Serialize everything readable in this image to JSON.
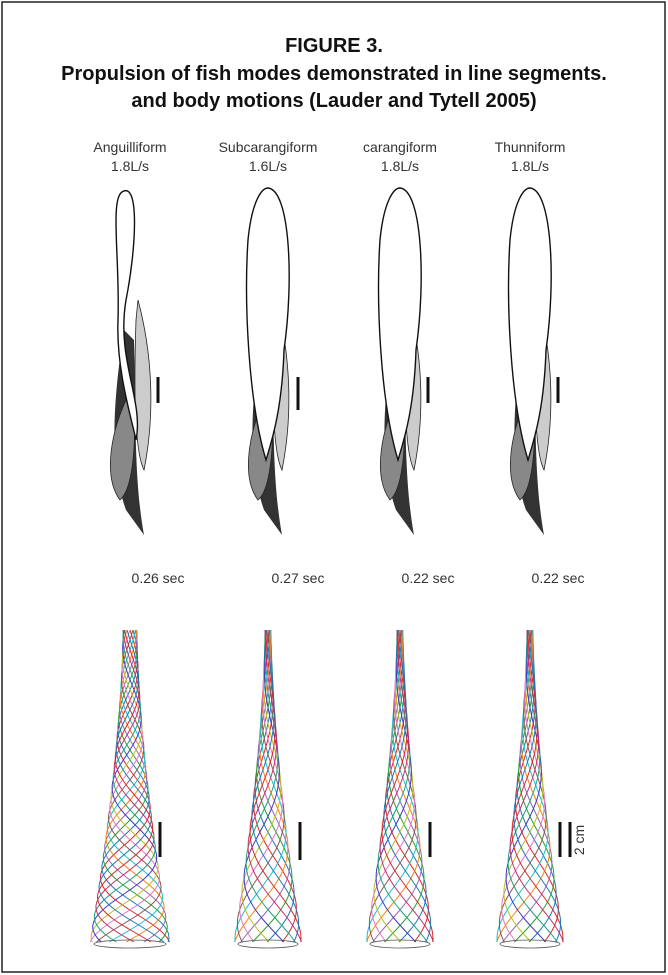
{
  "figure": {
    "title": "FIGURE 3.",
    "caption_lines": [
      "Propulsion of fish modes demonstrated in line segments.",
      "and body motions (Lauder and Tytell  2005)"
    ],
    "columns": [
      {
        "mode": "Anguilliform",
        "speed": "1.8L/s",
        "duration": "0.26 sec"
      },
      {
        "mode": "Subcarangiform",
        "speed": "1.6L/s",
        "duration": "0.27 sec"
      },
      {
        "mode": "carangiform",
        "speed": "1.8L/s",
        "duration": "0.22 sec"
      },
      {
        "mode": "Thunniform",
        "speed": "1.8L/s",
        "duration": "0.22 sec"
      }
    ],
    "scale_label": "2 cm"
  }
}
